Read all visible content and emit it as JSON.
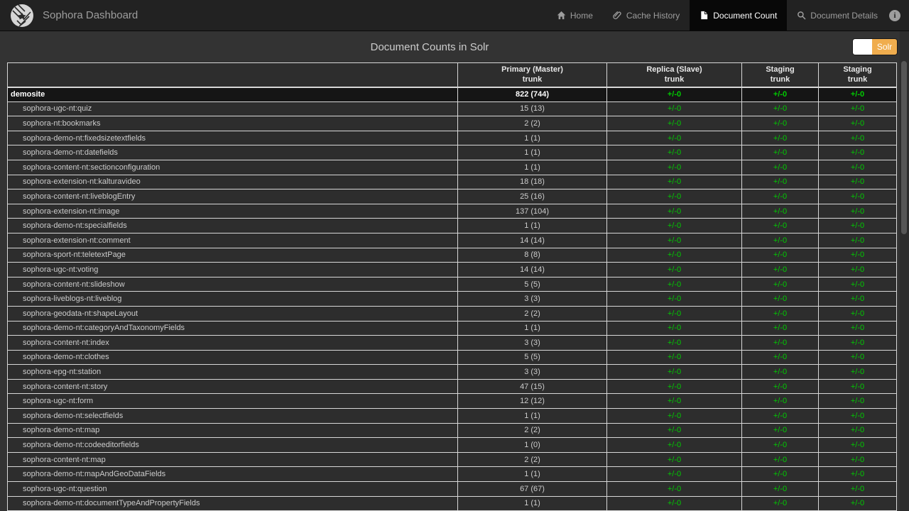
{
  "navbar": {
    "brand": "Sophora Dashboard",
    "items": [
      {
        "label": "Home",
        "icon": "home-icon",
        "active": false
      },
      {
        "label": "Cache History",
        "icon": "paperclip-icon",
        "active": false
      },
      {
        "label": "Document Count",
        "icon": "document-icon",
        "active": true
      },
      {
        "label": "Document Details",
        "icon": "search-icon",
        "active": false
      }
    ],
    "info_label": "i"
  },
  "page": {
    "title": "Document Counts in Solr",
    "toggle": {
      "label": "Solr",
      "state": "on",
      "accent_color": "#f0ad4e"
    }
  },
  "table": {
    "delta_color": "#00cc00",
    "headers": [
      {
        "line1": "",
        "line2": ""
      },
      {
        "line1": "Primary (Master)",
        "line2": "trunk"
      },
      {
        "line1": "Replica (Slave)",
        "line2": "trunk"
      },
      {
        "line1": "Staging",
        "line2": "trunk"
      },
      {
        "line1": "Staging",
        "line2": "trunk"
      }
    ],
    "rows": [
      {
        "name": "demosite",
        "emphasis": true,
        "values": [
          "822 (744)",
          "+/-0",
          "+/-0",
          "+/-0"
        ]
      },
      {
        "name": "sophora-ugc-nt:quiz",
        "emphasis": false,
        "values": [
          "15 (13)",
          "+/-0",
          "+/-0",
          "+/-0"
        ]
      },
      {
        "name": "sophora-nt:bookmarks",
        "emphasis": false,
        "values": [
          "2 (2)",
          "+/-0",
          "+/-0",
          "+/-0"
        ]
      },
      {
        "name": "sophora-demo-nt:fixedsizetextfields",
        "emphasis": false,
        "values": [
          "1 (1)",
          "+/-0",
          "+/-0",
          "+/-0"
        ]
      },
      {
        "name": "sophora-demo-nt:datefields",
        "emphasis": false,
        "values": [
          "1 (1)",
          "+/-0",
          "+/-0",
          "+/-0"
        ]
      },
      {
        "name": "sophora-content-nt:sectionconfiguration",
        "emphasis": false,
        "values": [
          "1 (1)",
          "+/-0",
          "+/-0",
          "+/-0"
        ]
      },
      {
        "name": "sophora-extension-nt:kalturavideo",
        "emphasis": false,
        "values": [
          "18 (18)",
          "+/-0",
          "+/-0",
          "+/-0"
        ]
      },
      {
        "name": "sophora-content-nt:liveblogEntry",
        "emphasis": false,
        "values": [
          "25 (16)",
          "+/-0",
          "+/-0",
          "+/-0"
        ]
      },
      {
        "name": "sophora-extension-nt:image",
        "emphasis": false,
        "values": [
          "137 (104)",
          "+/-0",
          "+/-0",
          "+/-0"
        ]
      },
      {
        "name": "sophora-demo-nt:specialfields",
        "emphasis": false,
        "values": [
          "1 (1)",
          "+/-0",
          "+/-0",
          "+/-0"
        ]
      },
      {
        "name": "sophora-extension-nt:comment",
        "emphasis": false,
        "values": [
          "14 (14)",
          "+/-0",
          "+/-0",
          "+/-0"
        ]
      },
      {
        "name": "sophora-sport-nt:teletextPage",
        "emphasis": false,
        "values": [
          "8 (8)",
          "+/-0",
          "+/-0",
          "+/-0"
        ]
      },
      {
        "name": "sophora-ugc-nt:voting",
        "emphasis": false,
        "values": [
          "14 (14)",
          "+/-0",
          "+/-0",
          "+/-0"
        ]
      },
      {
        "name": "sophora-content-nt:slideshow",
        "emphasis": false,
        "values": [
          "5 (5)",
          "+/-0",
          "+/-0",
          "+/-0"
        ]
      },
      {
        "name": "sophora-liveblogs-nt:liveblog",
        "emphasis": false,
        "values": [
          "3 (3)",
          "+/-0",
          "+/-0",
          "+/-0"
        ]
      },
      {
        "name": "sophora-geodata-nt:shapeLayout",
        "emphasis": false,
        "values": [
          "2 (2)",
          "+/-0",
          "+/-0",
          "+/-0"
        ]
      },
      {
        "name": "sophora-demo-nt:categoryAndTaxonomyFields",
        "emphasis": false,
        "values": [
          "1 (1)",
          "+/-0",
          "+/-0",
          "+/-0"
        ]
      },
      {
        "name": "sophora-content-nt:index",
        "emphasis": false,
        "values": [
          "3 (3)",
          "+/-0",
          "+/-0",
          "+/-0"
        ]
      },
      {
        "name": "sophora-demo-nt:clothes",
        "emphasis": false,
        "values": [
          "5 (5)",
          "+/-0",
          "+/-0",
          "+/-0"
        ]
      },
      {
        "name": "sophora-epg-nt:station",
        "emphasis": false,
        "values": [
          "3 (3)",
          "+/-0",
          "+/-0",
          "+/-0"
        ]
      },
      {
        "name": "sophora-content-nt:story",
        "emphasis": false,
        "values": [
          "47 (15)",
          "+/-0",
          "+/-0",
          "+/-0"
        ]
      },
      {
        "name": "sophora-ugc-nt:form",
        "emphasis": false,
        "values": [
          "12 (12)",
          "+/-0",
          "+/-0",
          "+/-0"
        ]
      },
      {
        "name": "sophora-demo-nt:selectfields",
        "emphasis": false,
        "values": [
          "1 (1)",
          "+/-0",
          "+/-0",
          "+/-0"
        ]
      },
      {
        "name": "sophora-demo-nt:map",
        "emphasis": false,
        "values": [
          "2 (2)",
          "+/-0",
          "+/-0",
          "+/-0"
        ]
      },
      {
        "name": "sophora-demo-nt:codeeditorfields",
        "emphasis": false,
        "values": [
          "1 (0)",
          "+/-0",
          "+/-0",
          "+/-0"
        ]
      },
      {
        "name": "sophora-content-nt:map",
        "emphasis": false,
        "values": [
          "2 (2)",
          "+/-0",
          "+/-0",
          "+/-0"
        ]
      },
      {
        "name": "sophora-demo-nt:mapAndGeoDataFields",
        "emphasis": false,
        "values": [
          "1 (1)",
          "+/-0",
          "+/-0",
          "+/-0"
        ]
      },
      {
        "name": "sophora-ugc-nt:question",
        "emphasis": false,
        "values": [
          "67 (67)",
          "+/-0",
          "+/-0",
          "+/-0"
        ]
      },
      {
        "name": "sophora-demo-nt:documentTypeAndPropertyFields",
        "emphasis": false,
        "values": [
          "1 (1)",
          "+/-0",
          "+/-0",
          "+/-0"
        ]
      }
    ]
  }
}
